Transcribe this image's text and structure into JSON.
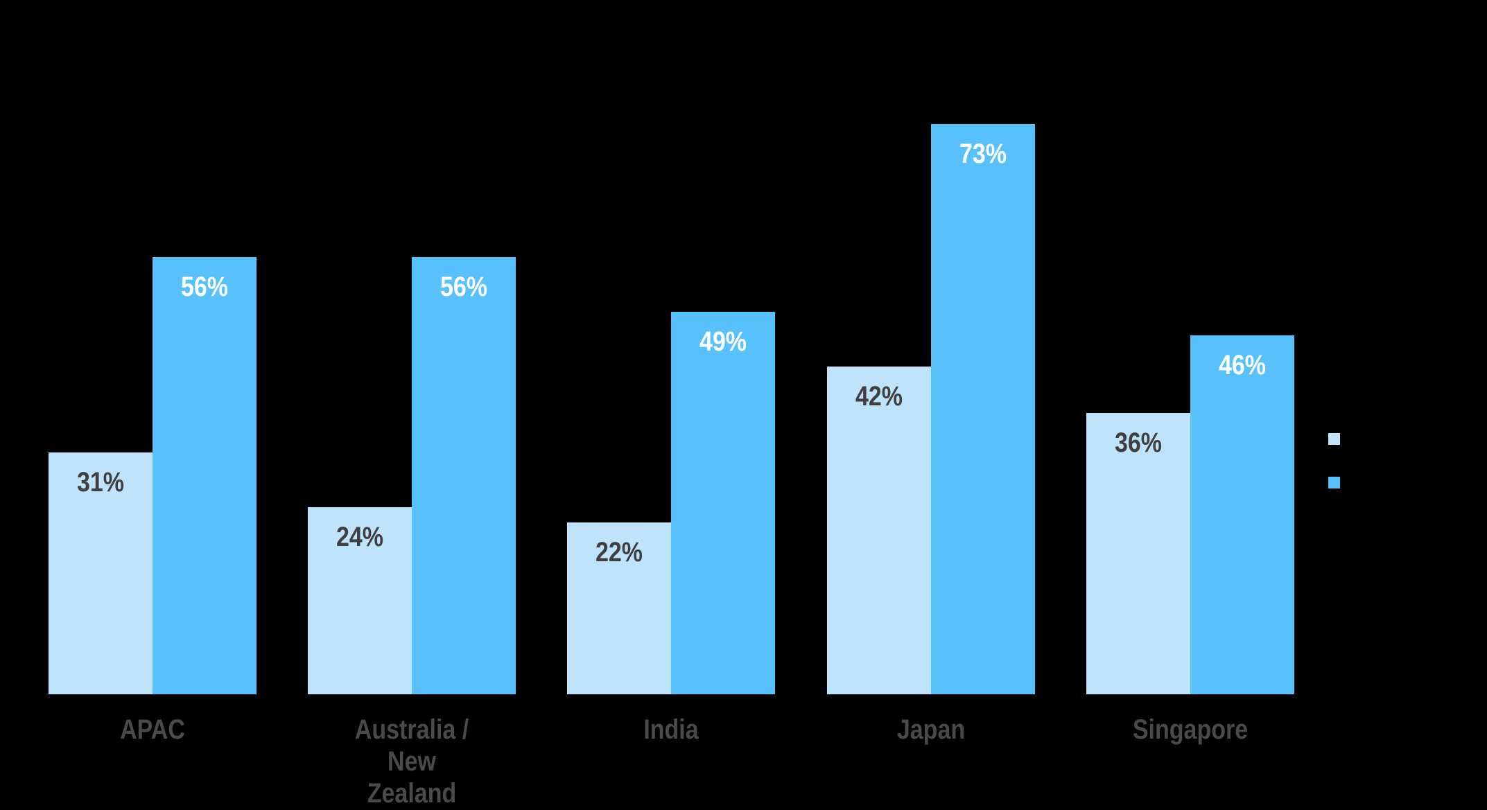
{
  "background_color": "#000000",
  "chart_data": {
    "type": "bar",
    "categories": [
      "APAC",
      "Australia /\nNew\nZealand",
      "India",
      "Japan",
      "Singapore"
    ],
    "series": [
      {
        "name": "",
        "color": "#BEE3FA",
        "label_color": "#3F3F3F",
        "values": [
          31,
          24,
          22,
          42,
          36
        ],
        "labels": [
          "31%",
          "24%",
          "22%",
          "42%",
          "36%"
        ]
      },
      {
        "name": "",
        "color": "#58C1FC",
        "label_color": "#FFFFFF",
        "values": [
          56,
          56,
          49,
          73,
          46
        ],
        "labels": [
          "56%",
          "56%",
          "49%",
          "73%",
          "46%"
        ]
      }
    ],
    "value_suffix": "%",
    "data_labels": "inside-top",
    "axes": "hidden",
    "gridlines": "hidden",
    "legend_position": "right",
    "category_label_color": "#4A4A4A"
  }
}
